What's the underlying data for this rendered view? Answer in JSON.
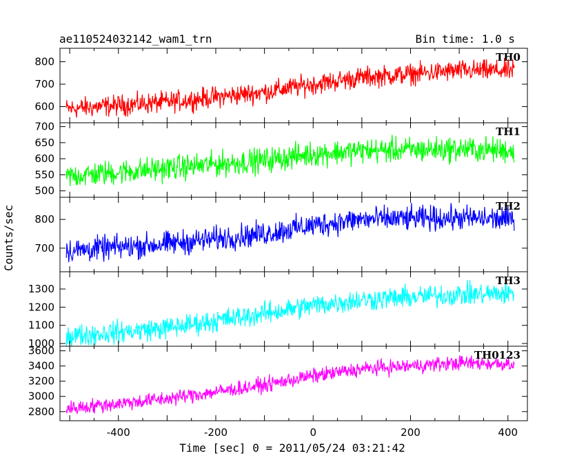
{
  "chart_data": {
    "type": "line",
    "title_left": "ae110524032142_wam1_trn",
    "title_right": "Bin time: 1.0 s",
    "xlabel": "Time [sec] 0 = 2011/05/24 03:21:42",
    "ylabel": "Counts/sec",
    "xlim": [
      -520,
      440
    ],
    "xticks": [
      -400,
      -200,
      0,
      200,
      400
    ],
    "x_range": [
      -507,
      413
    ],
    "panels": [
      {
        "name": "TH0",
        "color": "#ff0000",
        "ylim": [
          528,
          860
        ],
        "yticks": [
          600,
          700,
          800
        ],
        "trend": [
          [
            -507,
            590
          ],
          [
            -300,
            620
          ],
          [
            -100,
            665
          ],
          [
            0,
            700
          ],
          [
            100,
            730
          ],
          [
            300,
            760
          ],
          [
            413,
            760
          ]
        ],
        "noise": 38
      },
      {
        "name": "TH1",
        "color": "#00ff00",
        "ylim": [
          480,
          712
        ],
        "yticks": [
          500,
          550,
          600,
          650,
          700
        ],
        "trend": [
          [
            -507,
            545
          ],
          [
            -300,
            570
          ],
          [
            -100,
            595
          ],
          [
            0,
            615
          ],
          [
            100,
            625
          ],
          [
            300,
            630
          ],
          [
            413,
            625
          ]
        ],
        "noise": 32
      },
      {
        "name": "TH2",
        "color": "#0000ff",
        "ylim": [
          618,
          877
        ],
        "yticks": [
          700,
          800
        ],
        "trend": [
          [
            -507,
            690
          ],
          [
            -300,
            715
          ],
          [
            -100,
            750
          ],
          [
            0,
            780
          ],
          [
            100,
            800
          ],
          [
            300,
            805
          ],
          [
            413,
            800
          ]
        ],
        "noise": 35
      },
      {
        "name": "TH3",
        "color": "#00ffff",
        "ylim": [
          985,
          1395
        ],
        "yticks": [
          1000,
          1100,
          1200,
          1300
        ],
        "trend": [
          [
            -507,
            1040
          ],
          [
            -300,
            1085
          ],
          [
            -100,
            1165
          ],
          [
            0,
            1210
          ],
          [
            100,
            1240
          ],
          [
            300,
            1270
          ],
          [
            413,
            1275
          ]
        ],
        "noise": 50
      },
      {
        "name": "TH0123",
        "color": "#ff00ff",
        "ylim": [
          2680,
          3660
        ],
        "yticks": [
          2800,
          3000,
          3200,
          3400,
          3600
        ],
        "trend": [
          [
            -507,
            2840
          ],
          [
            -300,
            2970
          ],
          [
            -100,
            3150
          ],
          [
            0,
            3270
          ],
          [
            100,
            3360
          ],
          [
            300,
            3440
          ],
          [
            413,
            3430
          ]
        ],
        "noise": 80
      }
    ]
  }
}
